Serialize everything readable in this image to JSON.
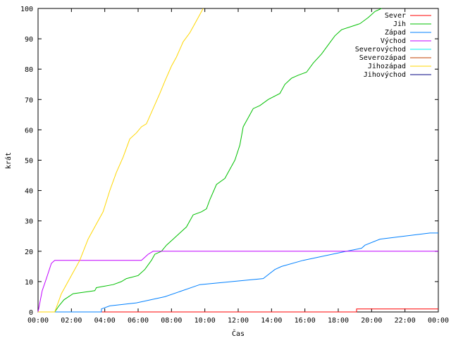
{
  "chart_data": {
    "type": "line",
    "xlabel": "Čas",
    "ylabel": "krát",
    "xlim": [
      0,
      24
    ],
    "ylim": [
      0,
      100
    ],
    "x_ticks": [
      0,
      2,
      4,
      6,
      8,
      10,
      12,
      14,
      16,
      18,
      20,
      22,
      24
    ],
    "x_tick_labels": [
      "00:00",
      "02:00",
      "04:00",
      "06:00",
      "08:00",
      "10:00",
      "12:00",
      "14:00",
      "16:00",
      "18:00",
      "20:00",
      "22:00",
      "00:00"
    ],
    "y_ticks": [
      0,
      10,
      20,
      30,
      40,
      50,
      60,
      70,
      80,
      90,
      100
    ],
    "grid": false,
    "legend_position": "top-right",
    "series": [
      {
        "name": "Sever",
        "color": "#ff0000",
        "points": [
          [
            0,
            0
          ],
          [
            19.1,
            0
          ],
          [
            19.1,
            1
          ],
          [
            24,
            1
          ]
        ]
      },
      {
        "name": "Jih",
        "color": "#00c000",
        "points": [
          [
            0,
            0
          ],
          [
            1.0,
            0
          ],
          [
            1.25,
            2
          ],
          [
            1.55,
            4
          ],
          [
            2.1,
            6
          ],
          [
            3.4,
            7
          ],
          [
            3.5,
            8
          ],
          [
            4.5,
            9
          ],
          [
            5.0,
            10
          ],
          [
            5.3,
            11
          ],
          [
            6.0,
            12
          ],
          [
            6.4,
            14
          ],
          [
            6.8,
            17
          ],
          [
            7.0,
            19
          ],
          [
            7.4,
            20
          ],
          [
            7.7,
            22
          ],
          [
            8.1,
            24
          ],
          [
            8.5,
            26
          ],
          [
            8.9,
            28
          ],
          [
            9.3,
            32
          ],
          [
            9.8,
            33
          ],
          [
            10.1,
            34
          ],
          [
            10.3,
            37
          ],
          [
            10.7,
            42
          ],
          [
            11.2,
            44
          ],
          [
            11.5,
            47
          ],
          [
            11.8,
            50
          ],
          [
            12.1,
            55
          ],
          [
            12.3,
            61
          ],
          [
            12.6,
            64
          ],
          [
            12.9,
            67
          ],
          [
            13.3,
            68
          ],
          [
            13.8,
            70
          ],
          [
            14.5,
            72
          ],
          [
            14.8,
            75
          ],
          [
            15.2,
            77
          ],
          [
            15.6,
            78
          ],
          [
            16.1,
            79
          ],
          [
            16.5,
            82
          ],
          [
            17.0,
            85
          ],
          [
            17.4,
            88
          ],
          [
            17.8,
            91
          ],
          [
            18.2,
            93
          ],
          [
            19.3,
            95
          ],
          [
            19.8,
            97
          ],
          [
            20.2,
            99
          ],
          [
            20.6,
            100
          ]
        ]
      },
      {
        "name": "Západ",
        "color": "#0080ff",
        "points": [
          [
            0,
            0
          ],
          [
            3.8,
            0
          ],
          [
            3.8,
            1
          ],
          [
            4.3,
            2
          ],
          [
            5.9,
            3
          ],
          [
            7.6,
            5
          ],
          [
            9.7,
            9
          ],
          [
            13.5,
            11
          ],
          [
            14.2,
            14
          ],
          [
            14.6,
            15
          ],
          [
            15.9,
            17
          ],
          [
            18.5,
            20
          ],
          [
            19.4,
            21
          ],
          [
            19.6,
            22
          ],
          [
            20.5,
            24
          ],
          [
            23.5,
            26
          ],
          [
            24,
            26
          ]
        ]
      },
      {
        "name": "Východ",
        "color": "#c000ff",
        "points": [
          [
            0,
            0
          ],
          [
            0.25,
            7
          ],
          [
            0.5,
            11
          ],
          [
            0.8,
            16
          ],
          [
            1.0,
            17
          ],
          [
            6.2,
            17
          ],
          [
            6.6,
            19
          ],
          [
            6.9,
            20
          ],
          [
            24,
            20
          ]
        ]
      },
      {
        "name": "Severovýchod",
        "color": "#00eeee",
        "points": []
      },
      {
        "name": "Severozápad",
        "color": "#c04000",
        "points": []
      },
      {
        "name": "Jihozápad",
        "color": "#ffd700",
        "points": [
          [
            0,
            0
          ],
          [
            1.0,
            0
          ],
          [
            1.4,
            6
          ],
          [
            2.0,
            12
          ],
          [
            2.5,
            17
          ],
          [
            3.0,
            24
          ],
          [
            3.5,
            29
          ],
          [
            3.9,
            33
          ],
          [
            4.3,
            40
          ],
          [
            4.7,
            46
          ],
          [
            5.1,
            51
          ],
          [
            5.5,
            57
          ],
          [
            5.9,
            59
          ],
          [
            6.2,
            61
          ],
          [
            6.5,
            62
          ],
          [
            6.9,
            67
          ],
          [
            7.3,
            72
          ],
          [
            7.6,
            76
          ],
          [
            8.0,
            81
          ],
          [
            8.3,
            84
          ],
          [
            8.7,
            89
          ],
          [
            9.1,
            92
          ],
          [
            9.4,
            95
          ],
          [
            9.7,
            98
          ],
          [
            9.9,
            100
          ]
        ]
      },
      {
        "name": "Jihovýchod",
        "color": "#000080",
        "points": []
      }
    ]
  }
}
